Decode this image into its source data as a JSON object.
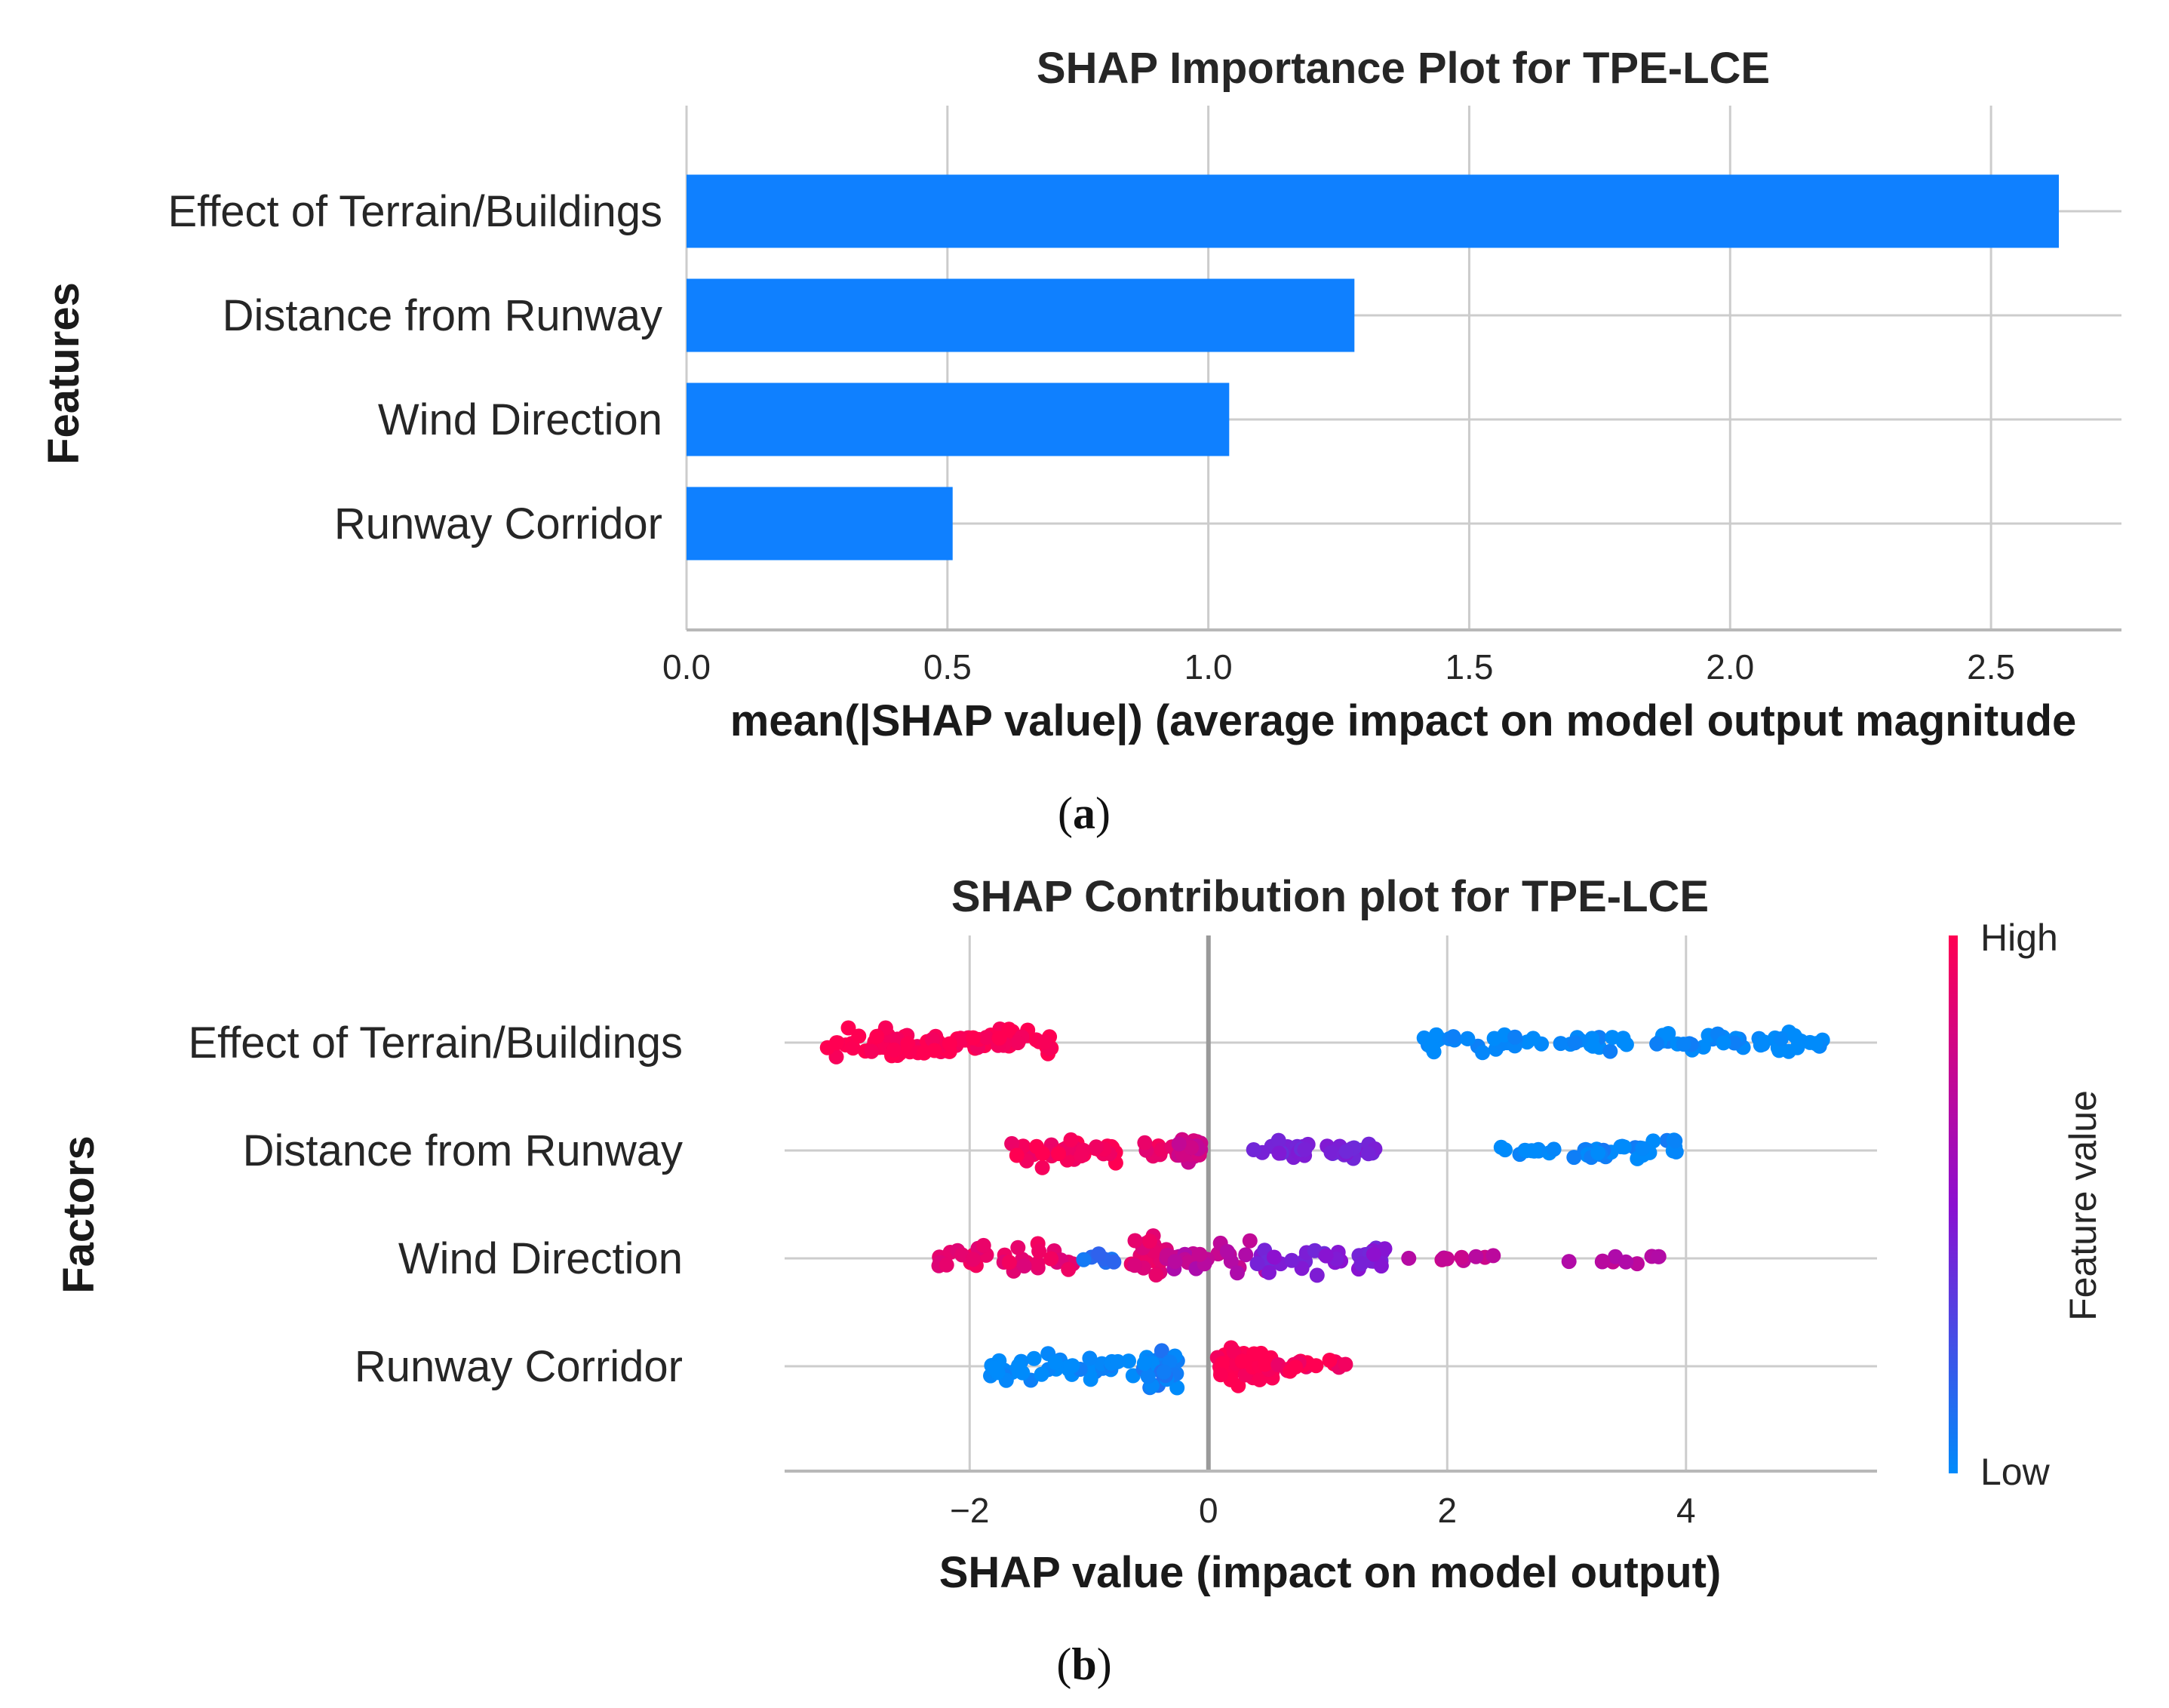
{
  "chart_data": [
    {
      "type": "bar",
      "orientation": "horizontal",
      "title": "SHAP Importance Plot for TPE-LCE",
      "xlabel": "mean(|SHAP value|) (average impact on model output magnitude",
      "ylabel": "Features",
      "categories": [
        "Effect of Terrain/Buildings",
        "Distance from Runway",
        "Wind Direction",
        "Runway Corridor"
      ],
      "values": [
        2.63,
        1.28,
        1.04,
        0.51
      ],
      "xlim": [
        0,
        2.75
      ],
      "xticks": [
        0.0,
        0.5,
        1.0,
        1.5,
        2.0,
        2.5
      ],
      "xtick_labels": [
        "0.0",
        "0.5",
        "1.0",
        "1.5",
        "2.0",
        "2.5"
      ],
      "grid": true,
      "color": "#0f80ff",
      "panel_label": "a"
    },
    {
      "type": "scatter",
      "subtype": "beeswarm",
      "title": "SHAP Contribution plot for TPE-LCE",
      "xlabel": "SHAP value (impact on model output)",
      "ylabel": "Factors",
      "categories": [
        "Effect of Terrain/Buildings",
        "Distance from Runway",
        "Wind Direction",
        "Runway Corridor"
      ],
      "xlim": [
        -3.55,
        5.6
      ],
      "xticks": [
        -2,
        0,
        2,
        4
      ],
      "xtick_labels": [
        "−2",
        "0",
        "2",
        "4"
      ],
      "grid": true,
      "colorbar": {
        "label": "Feature value",
        "high": "High",
        "low": "Low",
        "high_color": "#ff0052",
        "mid_color": "#8c10d0",
        "low_color": "#008bfb"
      },
      "clusters": [
        {
          "row": 0,
          "from": -3.2,
          "to": -1.3,
          "n": 95,
          "spread": 0.42,
          "hue": 1.0
        },
        {
          "row": 0,
          "from": 1.8,
          "to": 5.15,
          "n": 85,
          "spread": 0.3,
          "hue": 0.0
        },
        {
          "row": 1,
          "from": -1.65,
          "to": -0.75,
          "n": 42,
          "spread": 0.42,
          "hue": 0.97
        },
        {
          "row": 1,
          "from": -0.55,
          "to": -0.25,
          "n": 9,
          "spread": 0.2,
          "hue": 0.92
        },
        {
          "row": 1,
          "from": -0.25,
          "to": -0.05,
          "n": 24,
          "spread": 0.42,
          "hue": 0.78
        },
        {
          "row": 1,
          "from": 0.3,
          "to": 1.4,
          "n": 34,
          "spread": 0.3,
          "hue": 0.42
        },
        {
          "row": 1,
          "from": 2.45,
          "to": 2.9,
          "n": 11,
          "spread": 0.1,
          "hue": 0.0
        },
        {
          "row": 1,
          "from": 3.05,
          "to": 3.95,
          "n": 32,
          "spread": 0.3,
          "hue": 0.02
        },
        {
          "row": 2,
          "from": -2.3,
          "to": -1.1,
          "n": 34,
          "spread": 0.45,
          "hue": 0.9
        },
        {
          "row": 2,
          "from": -1.05,
          "to": -0.75,
          "n": 7,
          "spread": 0.2,
          "hue": 0.12
        },
        {
          "row": 2,
          "from": -0.65,
          "to": -0.35,
          "n": 30,
          "spread": 0.6,
          "hue": 0.88
        },
        {
          "row": 2,
          "from": -0.35,
          "to": 0.5,
          "n": 30,
          "spread": 0.45,
          "hue": 0.7
        },
        {
          "row": 2,
          "from": 0.4,
          "to": 1.5,
          "n": 38,
          "spread": 0.42,
          "hue": 0.45
        },
        {
          "row": 2,
          "from": 1.5,
          "to": 2.4,
          "n": 10,
          "spread": 0.18,
          "hue": 0.72
        },
        {
          "row": 2,
          "from": 2.8,
          "to": 3.8,
          "n": 10,
          "spread": 0.15,
          "hue": 0.68
        },
        {
          "row": 3,
          "from": -1.85,
          "to": -0.3,
          "n": 48,
          "spread": 0.42,
          "hue": 0.0
        },
        {
          "row": 3,
          "from": -0.55,
          "to": -0.25,
          "n": 22,
          "spread": 0.62,
          "hue": 0.05
        },
        {
          "row": 3,
          "from": 0.05,
          "to": 0.55,
          "n": 45,
          "spread": 0.6,
          "hue": 1.0
        },
        {
          "row": 3,
          "from": 0.55,
          "to": 1.15,
          "n": 18,
          "spread": 0.18,
          "hue": 0.97
        }
      ],
      "panel_label": "b"
    }
  ]
}
